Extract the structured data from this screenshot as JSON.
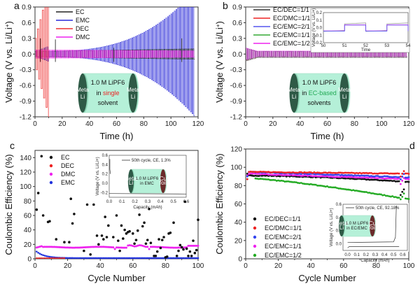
{
  "chart_data": [
    {
      "panel": "a",
      "type": "line",
      "xlabel": "Time (h)",
      "ylabel": "Voltage (V vs. Li/Li+)",
      "xlim": [
        0,
        120
      ],
      "ylim": [
        -1.2,
        0.9
      ],
      "xticks": [
        "0",
        "20",
        "40",
        "60",
        "80",
        "100",
        "120"
      ],
      "yticks": [
        "0.9",
        "0.6",
        "0.3",
        "0.0",
        "-0.3",
        "-0.6",
        "-0.9",
        "-1.2"
      ],
      "series": [
        {
          "name": "EC",
          "color": "#222222",
          "amplitude_start": 0.05,
          "amplitude_end": 0.1,
          "end_time": 117
        },
        {
          "name": "EMC",
          "color": "#2a2ad8",
          "amplitude_start": 0.05,
          "amplitude_end": 1.2,
          "end_time": 117
        },
        {
          "name": "DEC",
          "color": "#ee3030",
          "amplitude_start": 0.3,
          "amplitude_end": 1.2,
          "end_time": 9
        },
        {
          "name": "DMC",
          "color": "#ee22ee",
          "amplitude_start": 0.08,
          "amplitude_end": 0.06,
          "end_time": 117
        }
      ],
      "annotation": {
        "electrode": "Metal Li",
        "electrolyte_line1": "1.0 M LiPF6",
        "electrolyte_line2_prefix": "in ",
        "electrolyte_line2_colored": "single",
        "electrolyte_line3": "solvent",
        "colored_color": "#ee2222"
      }
    },
    {
      "panel": "b",
      "type": "line",
      "xlabel": "Time (h)",
      "ylabel": "Voltage (V vs. Li/Li+)",
      "xlim": [
        0,
        120
      ],
      "ylim": [
        -1.2,
        0.9
      ],
      "xticks": [
        "0",
        "20",
        "40",
        "60",
        "80",
        "100",
        "120"
      ],
      "yticks": [
        "0.9",
        "0.6",
        "0.3",
        "0.0",
        "-0.3",
        "-0.6",
        "-0.9",
        "-1.2"
      ],
      "series": [
        {
          "name": "EC/DEC=1/1",
          "color": "#333333",
          "amplitude": 0.06
        },
        {
          "name": "EC/DMC=1/1",
          "color": "#ee2222",
          "amplitude": 0.05
        },
        {
          "name": "EC/EMC=2/1",
          "color": "#5555ee",
          "amplitude": 0.05
        },
        {
          "name": "EC/EMC=1/1",
          "color": "#33aa33",
          "amplitude": 0.05
        },
        {
          "name": "EC/EMC=1/2",
          "color": "#ee22ee",
          "amplitude": 0.05
        }
      ],
      "inset": {
        "xlabel": "Time",
        "ylabel": "Voltage (V vs. Li/Li+)",
        "xticks": [
          "50",
          "51",
          "52",
          "53",
          "54"
        ],
        "yticks": [
          "0.2",
          "0.1",
          "0.0",
          "-0.1",
          "-0.2"
        ]
      },
      "annotation": {
        "electrode": "Metal Li",
        "electrolyte_line1": "1.0 M LiPF6",
        "electrolyte_line2_prefix": "in ",
        "electrolyte_line2_colored": "EC-based",
        "electrolyte_line3": "solvents",
        "colored_color": "#22aa55"
      }
    },
    {
      "panel": "c",
      "type": "scatter",
      "xlabel": "Cycle Number",
      "ylabel": "Coulombic Efficiency (%)",
      "xlim": [
        0,
        100
      ],
      "ylim": [
        0,
        150
      ],
      "xticks": [
        "0",
        "20",
        "40",
        "60",
        "80",
        "100"
      ],
      "yticks": [
        "0",
        "20",
        "40",
        "60",
        "80",
        "100",
        "120",
        "140"
      ],
      "series": [
        {
          "name": "EC",
          "color": "#111111",
          "points": [
            [
              1,
              68
            ],
            [
              2,
              91
            ],
            [
              4,
              142
            ],
            [
              5,
              60
            ],
            [
              8,
              51
            ],
            [
              9,
              52
            ],
            [
              13,
              27
            ],
            [
              18,
              23
            ],
            [
              21,
              23
            ],
            [
              22,
              83
            ],
            [
              23,
              49
            ],
            [
              24,
              62
            ],
            [
              30,
              11
            ],
            [
              32,
              75
            ],
            [
              34,
              6
            ],
            [
              36,
              75
            ],
            [
              38,
              32
            ],
            [
              39,
              20
            ],
            [
              41,
              32
            ],
            [
              42,
              27
            ],
            [
              43,
              58
            ],
            [
              44,
              30
            ],
            [
              45,
              46
            ],
            [
              48,
              30
            ],
            [
              50,
              60
            ],
            [
              51,
              25
            ],
            [
              52,
              11
            ],
            [
              53,
              46
            ],
            [
              54,
              28
            ],
            [
              55,
              40
            ],
            [
              56,
              35
            ],
            [
              57,
              37
            ],
            [
              58,
              38
            ],
            [
              60,
              35
            ],
            [
              61,
              21
            ],
            [
              62,
              26
            ],
            [
              63,
              39
            ],
            [
              64,
              61
            ],
            [
              66,
              45
            ],
            [
              67,
              50
            ],
            [
              68,
              21
            ],
            [
              69,
              26
            ],
            [
              70,
              69
            ],
            [
              71,
              22
            ],
            [
              73,
              4
            ],
            [
              74,
              4
            ],
            [
              75,
              10
            ],
            [
              76,
              27
            ],
            [
              77,
              15
            ],
            [
              78,
              26
            ],
            [
              79,
              30
            ],
            [
              80,
              2
            ],
            [
              81,
              3
            ],
            [
              82,
              35
            ],
            [
              83,
              36
            ],
            [
              85,
              50
            ],
            [
              87,
              4
            ],
            [
              88,
              11
            ],
            [
              89,
              19
            ],
            [
              90,
              16
            ],
            [
              91,
              13
            ],
            [
              92,
              79
            ],
            [
              93,
              14
            ],
            [
              94,
              4
            ],
            [
              95,
              10
            ],
            [
              96,
              4
            ],
            [
              97,
              25
            ],
            [
              98,
              8
            ],
            [
              99,
              12
            ],
            [
              100,
              54
            ]
          ]
        },
        {
          "name": "DEC",
          "color": "#ee2222",
          "points_range": [
            1,
            18
          ],
          "value": 1
        },
        {
          "name": "DMC",
          "color": "#ee22ee",
          "start": 15,
          "typical": 16,
          "range": [
            14,
            19
          ]
        },
        {
          "name": "EMC",
          "color": "#2233dd",
          "start": 10,
          "end": 1
        }
      ],
      "inset": {
        "legend": "50th cycle, CE, 1.3%",
        "xlabel": "Capacity (mAh)",
        "ylabel": "Voltage (V vs. Li/Li+)",
        "xticks": [
          "0.0",
          "0.1",
          "0.2",
          "0.3",
          "0.4",
          "0.5",
          "0.6"
        ],
        "yticks": [
          "0.6",
          "0.4",
          "0.2",
          "0.0",
          "-0.2"
        ],
        "cell_left": "Metal Li",
        "cell_right": "Cu foil",
        "cell_text1": "1.0 M LiPF6",
        "cell_text2": "in EMC",
        "colored_color": "#ee2222"
      }
    },
    {
      "panel": "d",
      "type": "scatter",
      "xlabel": "Cycle Number",
      "ylabel": "Coulombic Efficiency (%)",
      "xlim": [
        0,
        100
      ],
      "ylim": [
        0,
        120
      ],
      "xticks": [
        "0",
        "20",
        "40",
        "60",
        "80",
        "100"
      ],
      "yticks": [
        "0",
        "20",
        "40",
        "60",
        "80",
        "100",
        "120"
      ],
      "series": [
        {
          "name": "EC/DEC=1/1",
          "color": "#111111",
          "start": 93,
          "plateau": 91,
          "end": 84,
          "dip": 70
        },
        {
          "name": "EC/DMC=1/1",
          "color": "#ee2222",
          "start": 87,
          "plateau": 95,
          "end": 93,
          "dip": 90
        },
        {
          "name": "EC/EMC=2/1",
          "color": "#3344ee",
          "start": 90,
          "plateau": 95,
          "end": 89,
          "dip": 87
        },
        {
          "name": "EC/EMC=1/1",
          "color": "#ee22ee",
          "start": 91,
          "plateau": 93,
          "end": 87,
          "dip": 82
        },
        {
          "name": "EC/EMC=1/2",
          "color": "#22aa22",
          "start": 91,
          "plateau": 88,
          "end": 65,
          "dip": 65
        }
      ],
      "inset": {
        "legend": "50th cycle, CE, 92.18%",
        "xlabel": "Capacity (mAh)",
        "ylabel": "Voltage (V vs. Li/Li+)",
        "xticks": [
          "0.0",
          "0.1",
          "0.2",
          "0.3",
          "0.4",
          "0.5",
          "0.6"
        ],
        "yticks": [
          "0.6",
          "0.4",
          "0.2",
          "0.0"
        ],
        "cell_left": "Metal Li",
        "cell_right": "Cu foil",
        "cell_text1": "1.0 M LiPF6",
        "cell_text2": "in EC/EMC",
        "colored_color": "#22aa55"
      }
    }
  ],
  "panels": {
    "a_label": "a",
    "b_label": "b",
    "c_label": "c",
    "d_label": "d"
  }
}
